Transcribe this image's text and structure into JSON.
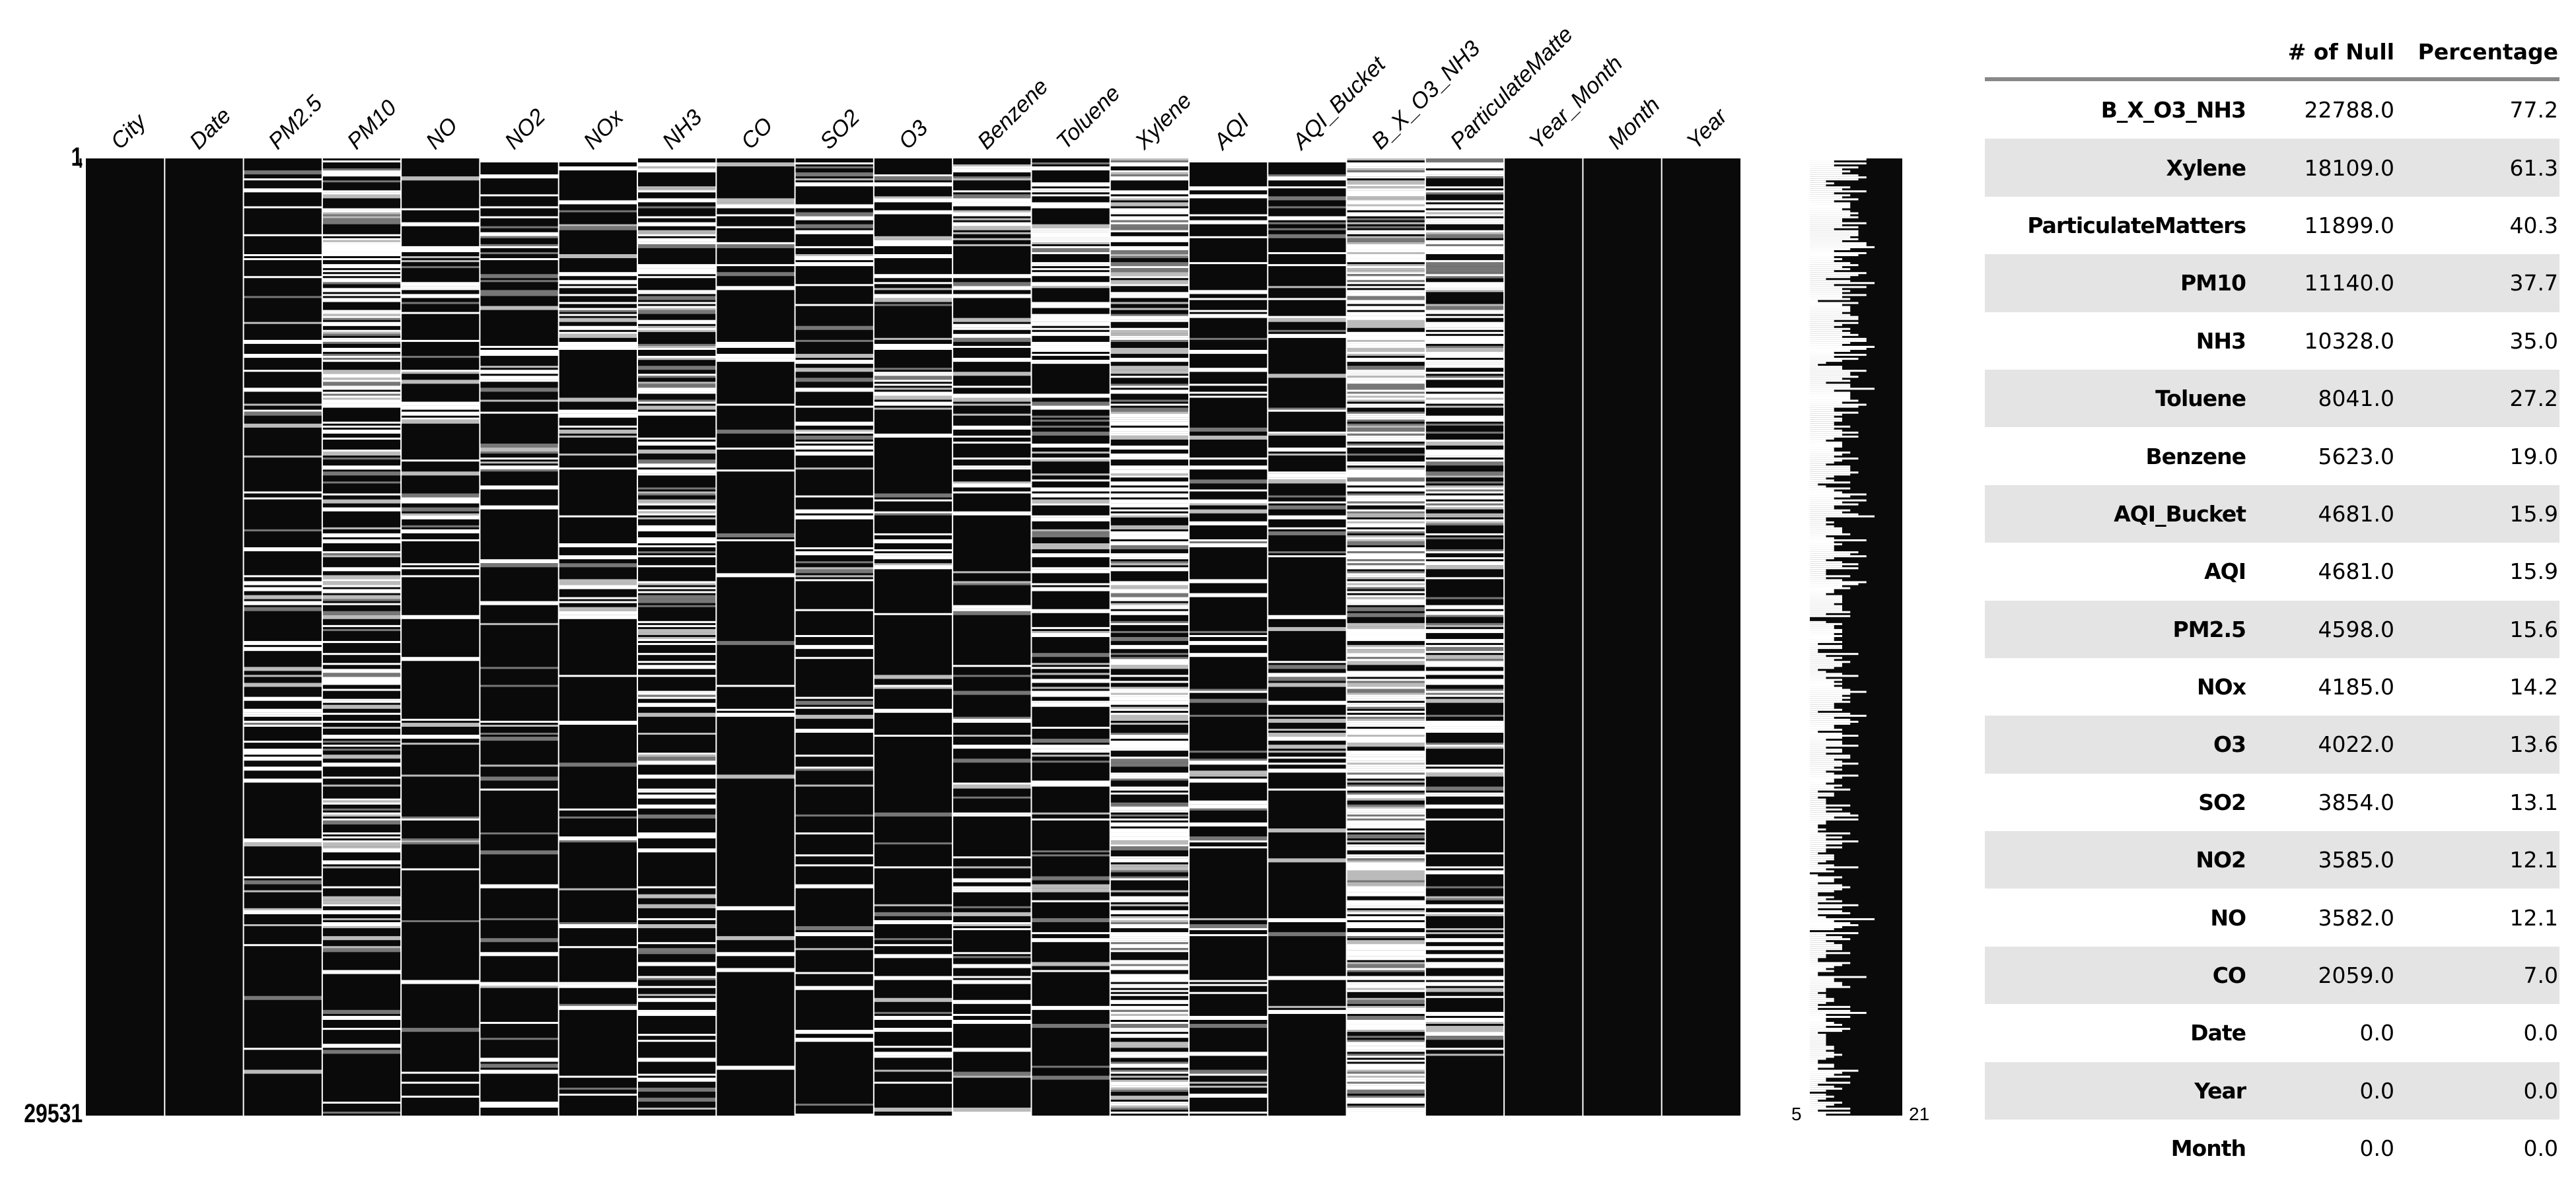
{
  "chart_data": {
    "type": "heatmap",
    "description_kind": "missingno matrix",
    "columns": [
      "City",
      "Date",
      "PM2.5",
      "PM10",
      "NO",
      "NO2",
      "NOx",
      "NH3",
      "CO",
      "SO2",
      "O3",
      "Benzene",
      "Toluene",
      "Xylene",
      "AQI",
      "AQI_Bucket",
      "B_X_O3_NH3",
      "ParticulateMatte",
      "Year_Month",
      "Month",
      "Year"
    ],
    "null_percentage": [
      0.0,
      0.0,
      15.6,
      37.7,
      12.1,
      12.1,
      14.2,
      35.0,
      7.0,
      13.1,
      13.6,
      19.0,
      27.2,
      61.3,
      15.9,
      15.9,
      77.2,
      40.3,
      0.0,
      0.0,
      0.0
    ],
    "row_labels": {
      "first": "1",
      "last": "29531"
    },
    "sparkline": {
      "min_label": "5",
      "max_label": "21"
    },
    "colors": {
      "present": "#0a0a0a",
      "missing": "#ffffff"
    }
  },
  "table": {
    "headers": [
      "",
      "# of Null",
      "Percentage"
    ],
    "rows": [
      [
        "B_X_O3_NH3",
        "22788.0",
        "77.2"
      ],
      [
        "Xylene",
        "18109.0",
        "61.3"
      ],
      [
        "ParticulateMatters",
        "11899.0",
        "40.3"
      ],
      [
        "PM10",
        "11140.0",
        "37.7"
      ],
      [
        "NH3",
        "10328.0",
        "35.0"
      ],
      [
        "Toluene",
        "8041.0",
        "27.2"
      ],
      [
        "Benzene",
        "5623.0",
        "19.0"
      ],
      [
        "AQI_Bucket",
        "4681.0",
        "15.9"
      ],
      [
        "AQI",
        "4681.0",
        "15.9"
      ],
      [
        "PM2.5",
        "4598.0",
        "15.6"
      ],
      [
        "NOx",
        "4185.0",
        "14.2"
      ],
      [
        "O3",
        "4022.0",
        "13.6"
      ],
      [
        "SO2",
        "3854.0",
        "13.1"
      ],
      [
        "NO2",
        "3585.0",
        "12.1"
      ],
      [
        "NO",
        "3582.0",
        "12.1"
      ],
      [
        "CO",
        "2059.0",
        "7.0"
      ],
      [
        "Date",
        "0.0",
        "0.0"
      ],
      [
        "Year",
        "0.0",
        "0.0"
      ],
      [
        "Month",
        "0.0",
        "0.0"
      ]
    ]
  }
}
